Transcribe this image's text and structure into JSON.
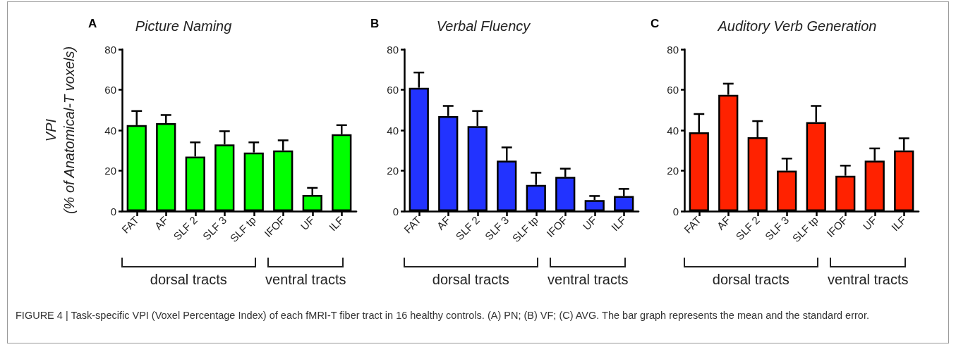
{
  "chart_data": [
    {
      "type": "bar",
      "title": "Picture Naming",
      "ylabel": "VPI\n(% of Anatomical-T voxels)",
      "categories": [
        "FAT",
        "AF",
        "SLF 2",
        "SLF 3",
        "SLF tp",
        "IFOF",
        "UF",
        "ILF"
      ],
      "series": [
        {
          "color": "#00ff00",
          "values": [
            42.5,
            43.5,
            27,
            33,
            29,
            30,
            8,
            38
          ],
          "errors": [
            7,
            4,
            7,
            6.5,
            5,
            5,
            3.5,
            4.5
          ]
        }
      ],
      "ylim": [
        0,
        80
      ],
      "yticks": [
        0,
        20,
        40,
        60,
        80
      ],
      "grid": false,
      "annotations": [
        "A",
        "dorsal tracts",
        "ventral tracts",
        "FIGURE 4 | Task-specific VPI (Voxel Percentage Index) of each fMRI-T fiber tract in 16 healthy controls. (A) PN; (B) VF; (C) AVG. The bar graph represents the mean and the standard error."
      ]
    },
    {
      "type": "bar",
      "title": "Verbal Fluency",
      "categories": [
        "FAT",
        "AF",
        "SLF 2",
        "SLF 3",
        "SLF tp",
        "IFOF",
        "UF",
        "ILF"
      ],
      "series": [
        {
          "color": "#2233ff",
          "values": [
            61,
            47,
            42,
            25,
            13,
            17,
            5.5,
            7.5
          ],
          "errors": [
            7.5,
            5,
            7.5,
            6.5,
            6,
            4,
            2,
            3.5
          ]
        }
      ],
      "ylim": [
        0,
        80
      ],
      "yticks": [
        0,
        20,
        40,
        60,
        80
      ],
      "grid": false,
      "annotations": [
        "B",
        "dorsal tracts",
        "ventral tracts"
      ]
    },
    {
      "type": "bar",
      "title": "Auditory Verb Generation",
      "categories": [
        "FAT",
        "AF",
        "SLF 2",
        "SLF 3",
        "SLF tp",
        "IFOF",
        "UF",
        "ILF"
      ],
      "series": [
        {
          "color": "#ff2200",
          "values": [
            39,
            57.5,
            36.5,
            20,
            44,
            17.5,
            25,
            30
          ],
          "errors": [
            9,
            5.5,
            8,
            6,
            8,
            5,
            6,
            6
          ]
        }
      ],
      "ylim": [
        0,
        80
      ],
      "yticks": [
        0,
        20,
        40,
        60,
        80
      ],
      "grid": false,
      "annotations": [
        "C",
        "dorsal tracts",
        "ventral tracts"
      ]
    }
  ]
}
